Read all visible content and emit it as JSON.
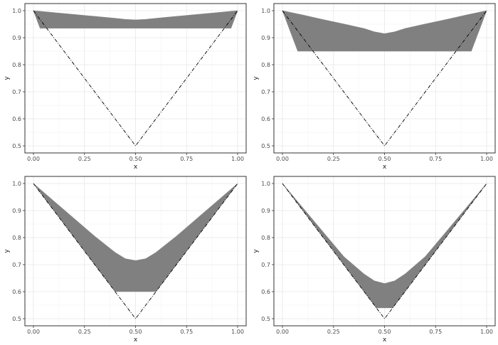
{
  "chart_data": [
    {
      "type": "area",
      "xlabel": "x",
      "ylabel": "y",
      "xlim": [
        0,
        1
      ],
      "ylim": [
        0.5,
        1.0
      ],
      "xticks": [
        "0.00",
        "0.25",
        "0.50",
        "0.75",
        "1.00"
      ],
      "yticks": [
        "0.5",
        "0.6",
        "0.7",
        "0.8",
        "0.9",
        "1.0"
      ],
      "grid": true,
      "boundary": {
        "style": "dash-dot",
        "x": [
          0,
          0.5,
          1
        ],
        "y": [
          1.0,
          0.5,
          1.0
        ]
      },
      "band": {
        "fill": "#808080",
        "upper": {
          "x": [
            0,
            0.1,
            0.2,
            0.3,
            0.4,
            0.45,
            0.5,
            0.55,
            0.6,
            0.7,
            0.8,
            0.9,
            1.0
          ],
          "y": [
            1.0,
            0.993,
            0.986,
            0.979,
            0.972,
            0.968,
            0.966,
            0.968,
            0.972,
            0.979,
            0.986,
            0.993,
            1.0
          ]
        },
        "lower": {
          "x": [
            0,
            0.0325,
            0.9675,
            1.0
          ],
          "y": [
            1.0,
            0.935,
            0.935,
            1.0
          ]
        }
      }
    },
    {
      "type": "area",
      "xlabel": "x",
      "ylabel": "y",
      "xlim": [
        0,
        1
      ],
      "ylim": [
        0.5,
        1.0
      ],
      "xticks": [
        "0.00",
        "0.25",
        "0.50",
        "0.75",
        "1.00"
      ],
      "yticks": [
        "0.5",
        "0.6",
        "0.7",
        "0.8",
        "0.9",
        "1.0"
      ],
      "grid": true,
      "boundary": {
        "style": "dash-dot",
        "x": [
          0,
          0.5,
          1
        ],
        "y": [
          1.0,
          0.5,
          1.0
        ]
      },
      "band": {
        "fill": "#808080",
        "upper": {
          "x": [
            0,
            0.1,
            0.2,
            0.3,
            0.4,
            0.45,
            0.5,
            0.55,
            0.6,
            0.7,
            0.8,
            0.9,
            1.0
          ],
          "y": [
            1.0,
            0.984,
            0.967,
            0.951,
            0.934,
            0.922,
            0.915,
            0.922,
            0.934,
            0.951,
            0.967,
            0.984,
            1.0
          ]
        },
        "lower": {
          "x": [
            0,
            0.075,
            0.925,
            1.0
          ],
          "y": [
            1.0,
            0.85,
            0.85,
            1.0
          ]
        }
      }
    },
    {
      "type": "area",
      "xlabel": "x",
      "ylabel": "y",
      "xlim": [
        0,
        1
      ],
      "ylim": [
        0.5,
        1.0
      ],
      "xticks": [
        "0.00",
        "0.25",
        "0.50",
        "0.75",
        "1.00"
      ],
      "yticks": [
        "0.5",
        "0.6",
        "0.7",
        "0.8",
        "0.9",
        "1.0"
      ],
      "grid": true,
      "boundary": {
        "style": "dash-dot",
        "x": [
          0,
          0.5,
          1
        ],
        "y": [
          1.0,
          0.5,
          1.0
        ]
      },
      "band": {
        "fill": "#808080",
        "upper": {
          "x": [
            0,
            0.1,
            0.2,
            0.3,
            0.4,
            0.45,
            0.5,
            0.55,
            0.6,
            0.7,
            0.8,
            0.9,
            1.0
          ],
          "y": [
            1.0,
            0.935,
            0.87,
            0.805,
            0.745,
            0.722,
            0.715,
            0.722,
            0.745,
            0.805,
            0.87,
            0.935,
            1.0
          ]
        },
        "lower": {
          "x": [
            0,
            0.4,
            0.6,
            1.0
          ],
          "y": [
            1.0,
            0.6,
            0.6,
            1.0
          ]
        }
      }
    },
    {
      "type": "area",
      "xlabel": "x",
      "ylabel": "y",
      "xlim": [
        0,
        1
      ],
      "ylim": [
        0.5,
        1.0
      ],
      "xticks": [
        "0.00",
        "0.25",
        "0.50",
        "0.75",
        "1.00"
      ],
      "yticks": [
        "0.5",
        "0.6",
        "0.7",
        "0.8",
        "0.9",
        "1.0"
      ],
      "grid": true,
      "boundary": {
        "style": "dash-dot",
        "x": [
          0,
          0.5,
          1
        ],
        "y": [
          1.0,
          0.5,
          1.0
        ]
      },
      "band": {
        "fill": "#808080",
        "upper": {
          "x": [
            0,
            0.1,
            0.2,
            0.3,
            0.4,
            0.45,
            0.5,
            0.55,
            0.6,
            0.7,
            0.8,
            0.9,
            1.0
          ],
          "y": [
            1.0,
            0.91,
            0.82,
            0.73,
            0.665,
            0.64,
            0.63,
            0.64,
            0.665,
            0.73,
            0.82,
            0.91,
            1.0
          ]
        },
        "lower": {
          "x": [
            0,
            0.46,
            0.54,
            1.0
          ],
          "y": [
            1.0,
            0.54,
            0.54,
            1.0
          ]
        }
      }
    }
  ]
}
